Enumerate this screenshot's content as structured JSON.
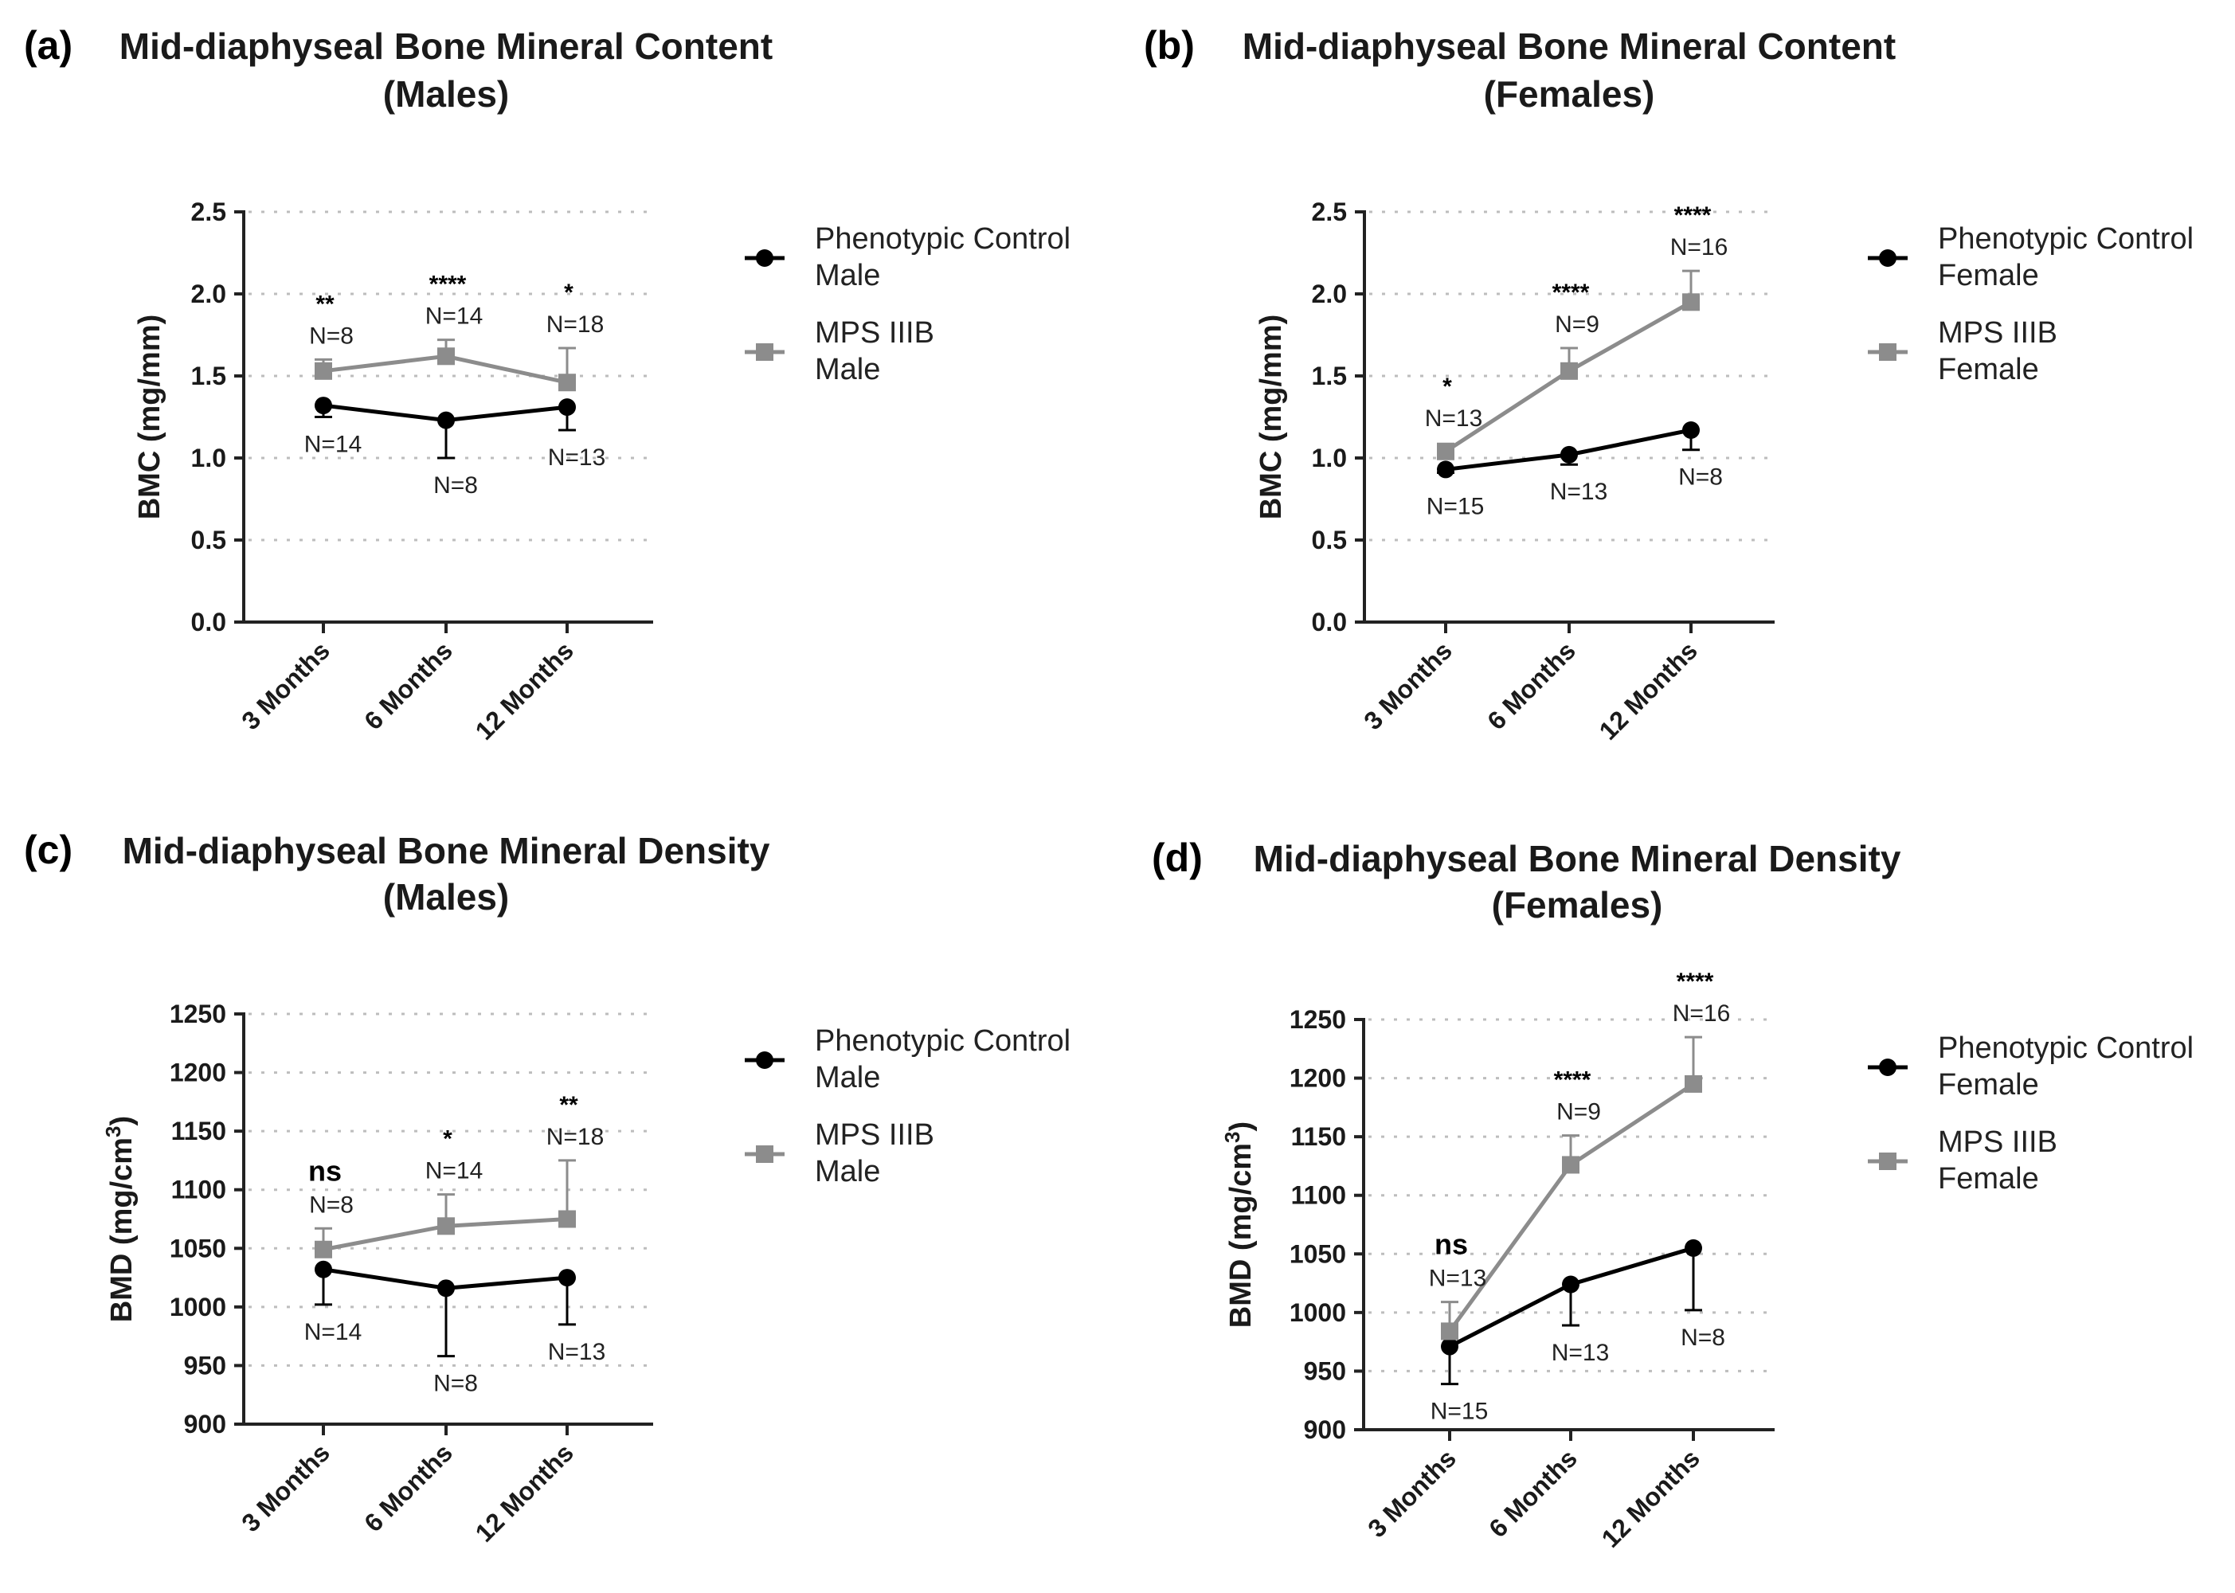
{
  "chart_data": [
    {
      "type": "line",
      "panel": "(a)",
      "title": [
        "Mid-diaphyseal Bone Mineral Content",
        "(Males)"
      ],
      "ylabel": "BMC (mg/mm)",
      "ylabel_sup": "",
      "ylabel_tail": "",
      "ylim": [
        0,
        2.5
      ],
      "yticks": [
        "0.0",
        "0.5",
        "1.0",
        "1.5",
        "2.0",
        "2.5"
      ],
      "categories": [
        "3 Months",
        "6 Months",
        "12 Months"
      ],
      "series": [
        {
          "name": "Phenotypic Control Male",
          "legend": [
            "Phenotypic Control",
            "Male"
          ],
          "color": "#000000",
          "marker": "circle",
          "values": [
            1.32,
            1.23,
            1.31
          ],
          "errors": [
            0.07,
            0.23,
            0.14
          ],
          "err_dir": [
            "down",
            "down",
            "down"
          ],
          "n_labels": [
            "N=14",
            "N=8",
            "N=13"
          ]
        },
        {
          "name": "MPS IIIB Male",
          "legend": [
            "MPS IIIB",
            "Male"
          ],
          "color": "#8c8c8c",
          "marker": "square",
          "values": [
            1.53,
            1.62,
            1.46
          ],
          "errors": [
            0.07,
            0.1,
            0.21
          ],
          "err_dir": [
            "up",
            "up",
            "up"
          ],
          "n_labels": [
            "N=8",
            "N=14",
            "N=18"
          ]
        }
      ],
      "significance": [
        "**",
        "****",
        "*"
      ]
    },
    {
      "type": "line",
      "panel": "(b)",
      "title": [
        "Mid-diaphyseal Bone Mineral Content",
        "(Females)"
      ],
      "ylabel": "BMC (mg/mm)",
      "ylabel_sup": "",
      "ylabel_tail": "",
      "ylim": [
        0,
        2.5
      ],
      "yticks": [
        "0.0",
        "0.5",
        "1.0",
        "1.5",
        "2.0",
        "2.5"
      ],
      "categories": [
        "3 Months",
        "6 Months",
        "12 Months"
      ],
      "series": [
        {
          "name": "Phenotypic Control Female",
          "legend": [
            "Phenotypic Control",
            "Female"
          ],
          "color": "#000000",
          "marker": "circle",
          "values": [
            0.93,
            1.02,
            1.17
          ],
          "errors": [
            0.02,
            0.06,
            0.12
          ],
          "err_dir": [
            "down",
            "down",
            "down"
          ],
          "n_labels": [
            "N=15",
            "N=13",
            "N=8"
          ]
        },
        {
          "name": "MPS IIIB Female",
          "legend": [
            "MPS IIIB",
            "Female"
          ],
          "color": "#8c8c8c",
          "marker": "square",
          "values": [
            1.04,
            1.53,
            1.95
          ],
          "errors": [
            0.03,
            0.14,
            0.19
          ],
          "err_dir": [
            "up",
            "up",
            "up"
          ],
          "n_labels": [
            "N=13",
            "N=9",
            "N=16"
          ]
        }
      ],
      "significance": [
        "*",
        "****",
        "****"
      ]
    },
    {
      "type": "line",
      "panel": "(c)",
      "title": [
        "Mid-diaphyseal Bone Mineral Density",
        "(Males)"
      ],
      "ylabel": "BMD (mg/cm",
      "ylabel_sup": "3",
      "ylabel_tail": ")",
      "ylim": [
        900,
        1250
      ],
      "yticks": [
        "900",
        "950",
        "1000",
        "1050",
        "1100",
        "1150",
        "1200",
        "1250"
      ],
      "categories": [
        "3 Months",
        "6 Months",
        "12 Months"
      ],
      "series": [
        {
          "name": "Phenotypic Control Male",
          "legend": [
            "Phenotypic Control",
            "Male"
          ],
          "color": "#000000",
          "marker": "circle",
          "values": [
            1032,
            1016,
            1025
          ],
          "errors": [
            30,
            58,
            40
          ],
          "err_dir": [
            "down",
            "down",
            "down"
          ],
          "n_labels": [
            "N=14",
            "N=8",
            "N=13"
          ]
        },
        {
          "name": "MPS IIIB Male",
          "legend": [
            "MPS IIIB",
            "Male"
          ],
          "color": "#8c8c8c",
          "marker": "square",
          "values": [
            1049,
            1069,
            1075
          ],
          "errors": [
            18,
            27,
            50
          ],
          "err_dir": [
            "up",
            "up",
            "up"
          ],
          "n_labels": [
            "N=8",
            "N=14",
            "N=18"
          ]
        }
      ],
      "significance": [
        "ns",
        "*",
        "**"
      ]
    },
    {
      "type": "line",
      "panel": "(d)",
      "title": [
        "Mid-diaphyseal Bone Mineral Density",
        "(Females)"
      ],
      "ylabel": "BMD (mg/cm",
      "ylabel_sup": "3",
      "ylabel_tail": ")",
      "ylim": [
        900,
        1250
      ],
      "yticks": [
        "900",
        "950",
        "1000",
        "1050",
        "1100",
        "1150",
        "1200",
        "1250"
      ],
      "categories": [
        "3 Months",
        "6 Months",
        "12 Months"
      ],
      "series": [
        {
          "name": "Phenotypic Control Female",
          "legend": [
            "Phenotypic Control",
            "Female"
          ],
          "color": "#000000",
          "marker": "circle",
          "values": [
            971,
            1024,
            1055
          ],
          "errors": [
            32,
            35,
            53
          ],
          "err_dir": [
            "down",
            "down",
            "down"
          ],
          "n_labels": [
            "N=15",
            "N=13",
            "N=8"
          ]
        },
        {
          "name": "MPS IIIB Female",
          "legend": [
            "MPS IIIB",
            "Female"
          ],
          "color": "#8c8c8c",
          "marker": "square",
          "values": [
            984,
            1126,
            1195
          ],
          "errors": [
            25,
            25,
            40
          ],
          "err_dir": [
            "up",
            "up",
            "up"
          ],
          "n_labels": [
            "N=13",
            "N=9",
            "N=16"
          ]
        }
      ],
      "significance": [
        "ns",
        "****",
        "****"
      ]
    }
  ]
}
